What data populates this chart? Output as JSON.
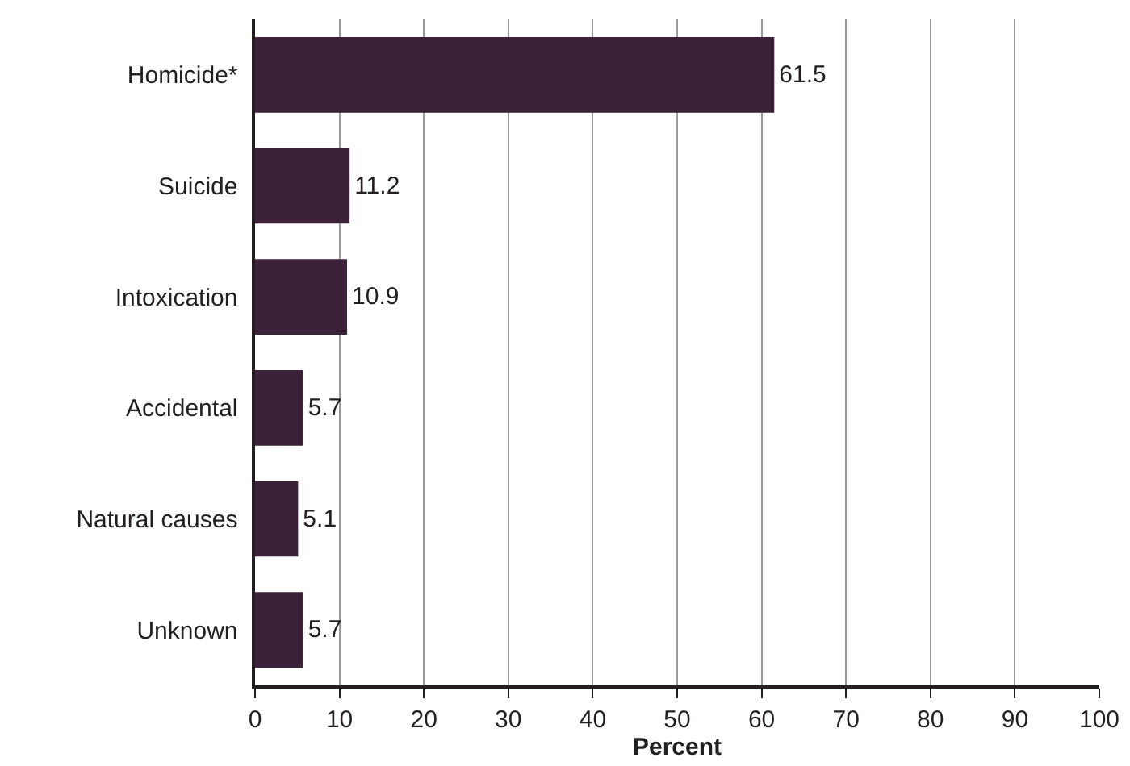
{
  "chart_data": {
    "type": "bar",
    "orientation": "horizontal",
    "xlabel": "Percent",
    "categories": [
      "Homicide*",
      "Suicide",
      "Intoxication",
      "Accidental",
      "Natural causes",
      "Unknown"
    ],
    "values": [
      61.5,
      11.2,
      10.9,
      5.7,
      5.1,
      5.7
    ],
    "color": "#3c2238",
    "xlim": [
      0,
      100
    ],
    "xticks": [
      0,
      10,
      20,
      30,
      40,
      50,
      60,
      70,
      80,
      90,
      100
    ],
    "grid": "x",
    "data_labels": true,
    "legend": false
  }
}
